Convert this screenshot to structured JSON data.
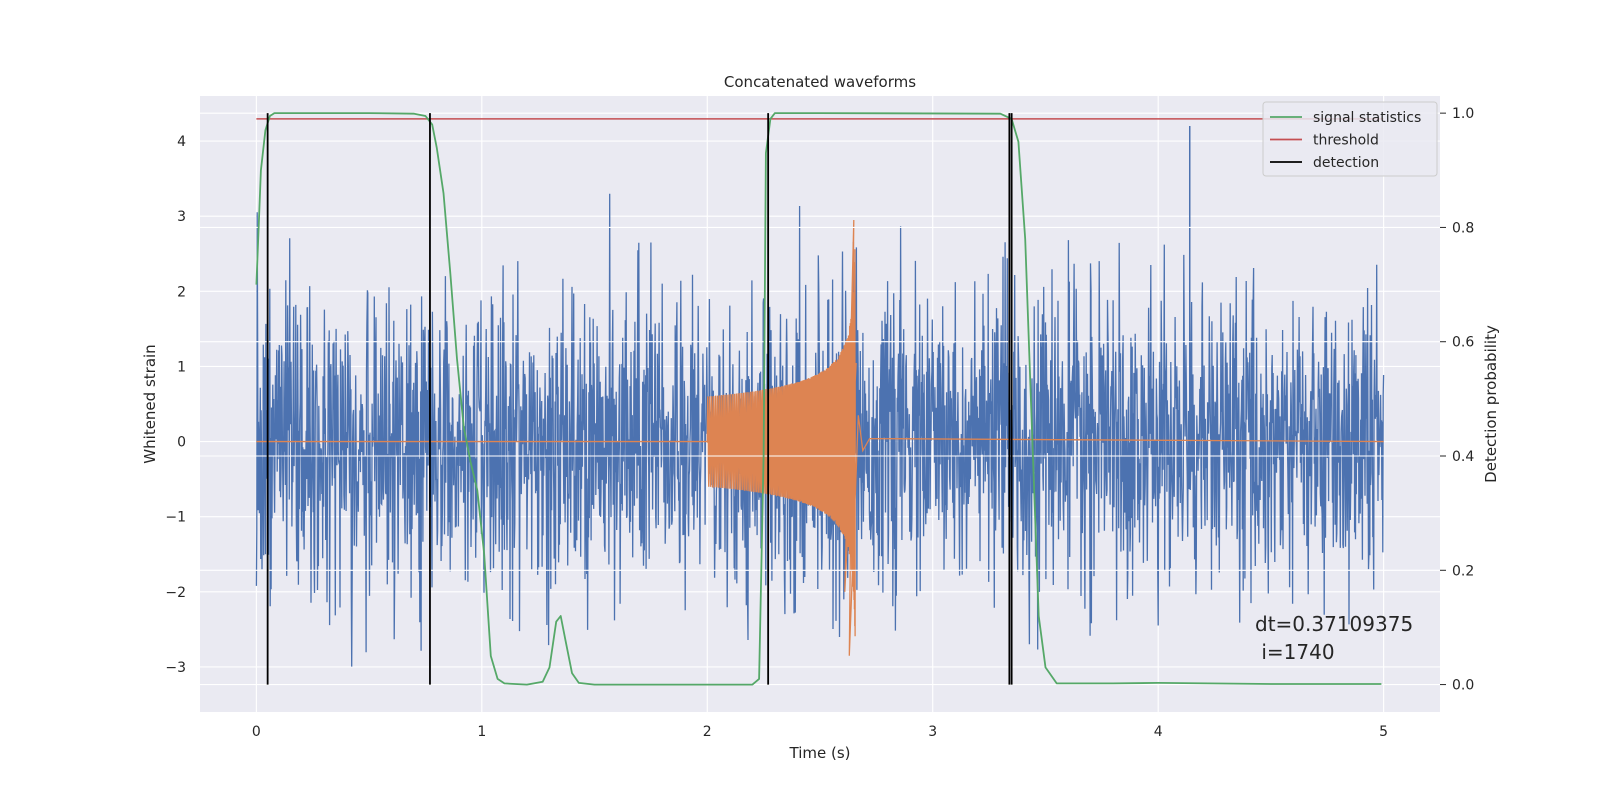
{
  "chart_data": {
    "type": "line",
    "title": "Concatenated waveforms",
    "xlabel": "Time (s)",
    "ylabel": "Whitened strain",
    "y2label": "Detection probability",
    "xlim": [
      -0.25,
      5.25
    ],
    "ylim": [
      -3.6,
      4.6
    ],
    "y2lim": [
      -0.048,
      1.03
    ],
    "xticks": [
      0,
      1,
      2,
      3,
      4,
      5
    ],
    "yticks": [
      -3,
      -2,
      -1,
      0,
      1,
      2,
      3,
      4
    ],
    "y2ticks": [
      "0.0",
      "0.2",
      "0.4",
      "0.6",
      "0.8",
      "1.0"
    ],
    "grid": true,
    "legend_position": "top-right",
    "colors": {
      "background": "#eaeaf2",
      "strain": "#4c72b0",
      "waveform": "#dd8452",
      "signal": "#55a868",
      "threshold": "#c44e52",
      "detection": "#000000"
    },
    "legend": [
      {
        "label": "signal statistics",
        "color": "#55a868"
      },
      {
        "label": "threshold",
        "color": "#c44e52"
      },
      {
        "label": "detection",
        "color": "#000000"
      }
    ],
    "threshold": 0.99,
    "detections": [
      0.05,
      0.77,
      2.27,
      3.34,
      3.35
    ],
    "signal_statistics": {
      "x": [
        0.0,
        0.02,
        0.04,
        0.06,
        0.08,
        0.1,
        0.2,
        0.5,
        0.7,
        0.75,
        0.78,
        0.8,
        0.83,
        0.86,
        0.89,
        0.92,
        0.95,
        0.98,
        1.01,
        1.04,
        1.07,
        1.1,
        1.2,
        1.27,
        1.3,
        1.33,
        1.35,
        1.37,
        1.4,
        1.43,
        1.5,
        2.2,
        2.23,
        2.25,
        2.26,
        2.28,
        2.3,
        2.35,
        2.5,
        3.3,
        3.35,
        3.38,
        3.41,
        3.44,
        3.47,
        3.5,
        3.55,
        3.8,
        4.0,
        4.5,
        4.99
      ],
      "y": [
        0.7,
        0.9,
        0.97,
        0.995,
        1.0,
        1.0,
        1.0,
        1.0,
        0.999,
        0.995,
        0.98,
        0.94,
        0.86,
        0.72,
        0.57,
        0.45,
        0.39,
        0.34,
        0.23,
        0.05,
        0.01,
        0.002,
        0.0,
        0.005,
        0.03,
        0.11,
        0.12,
        0.08,
        0.02,
        0.003,
        0.0,
        0.0,
        0.01,
        0.4,
        0.93,
        0.99,
        1.0,
        1.0,
        1.0,
        0.999,
        0.99,
        0.95,
        0.78,
        0.45,
        0.12,
        0.03,
        0.002,
        0.002,
        0.003,
        0.001,
        0.001
      ]
    },
    "whitened_strain": {
      "x_range": [
        0,
        5
      ],
      "typical_range": [
        -2.5,
        2.5
      ],
      "max": 4.2,
      "max_at": 4.14,
      "min": -3.25
    },
    "waveform": {
      "x_range": [
        0,
        5
      ],
      "active_range": [
        2.0,
        2.66
      ],
      "peak": 2.95,
      "peak_at": 2.65,
      "trough": -2.85,
      "trough_at": 2.63
    },
    "annotation": "dt=0.37109375\n i=1740"
  }
}
